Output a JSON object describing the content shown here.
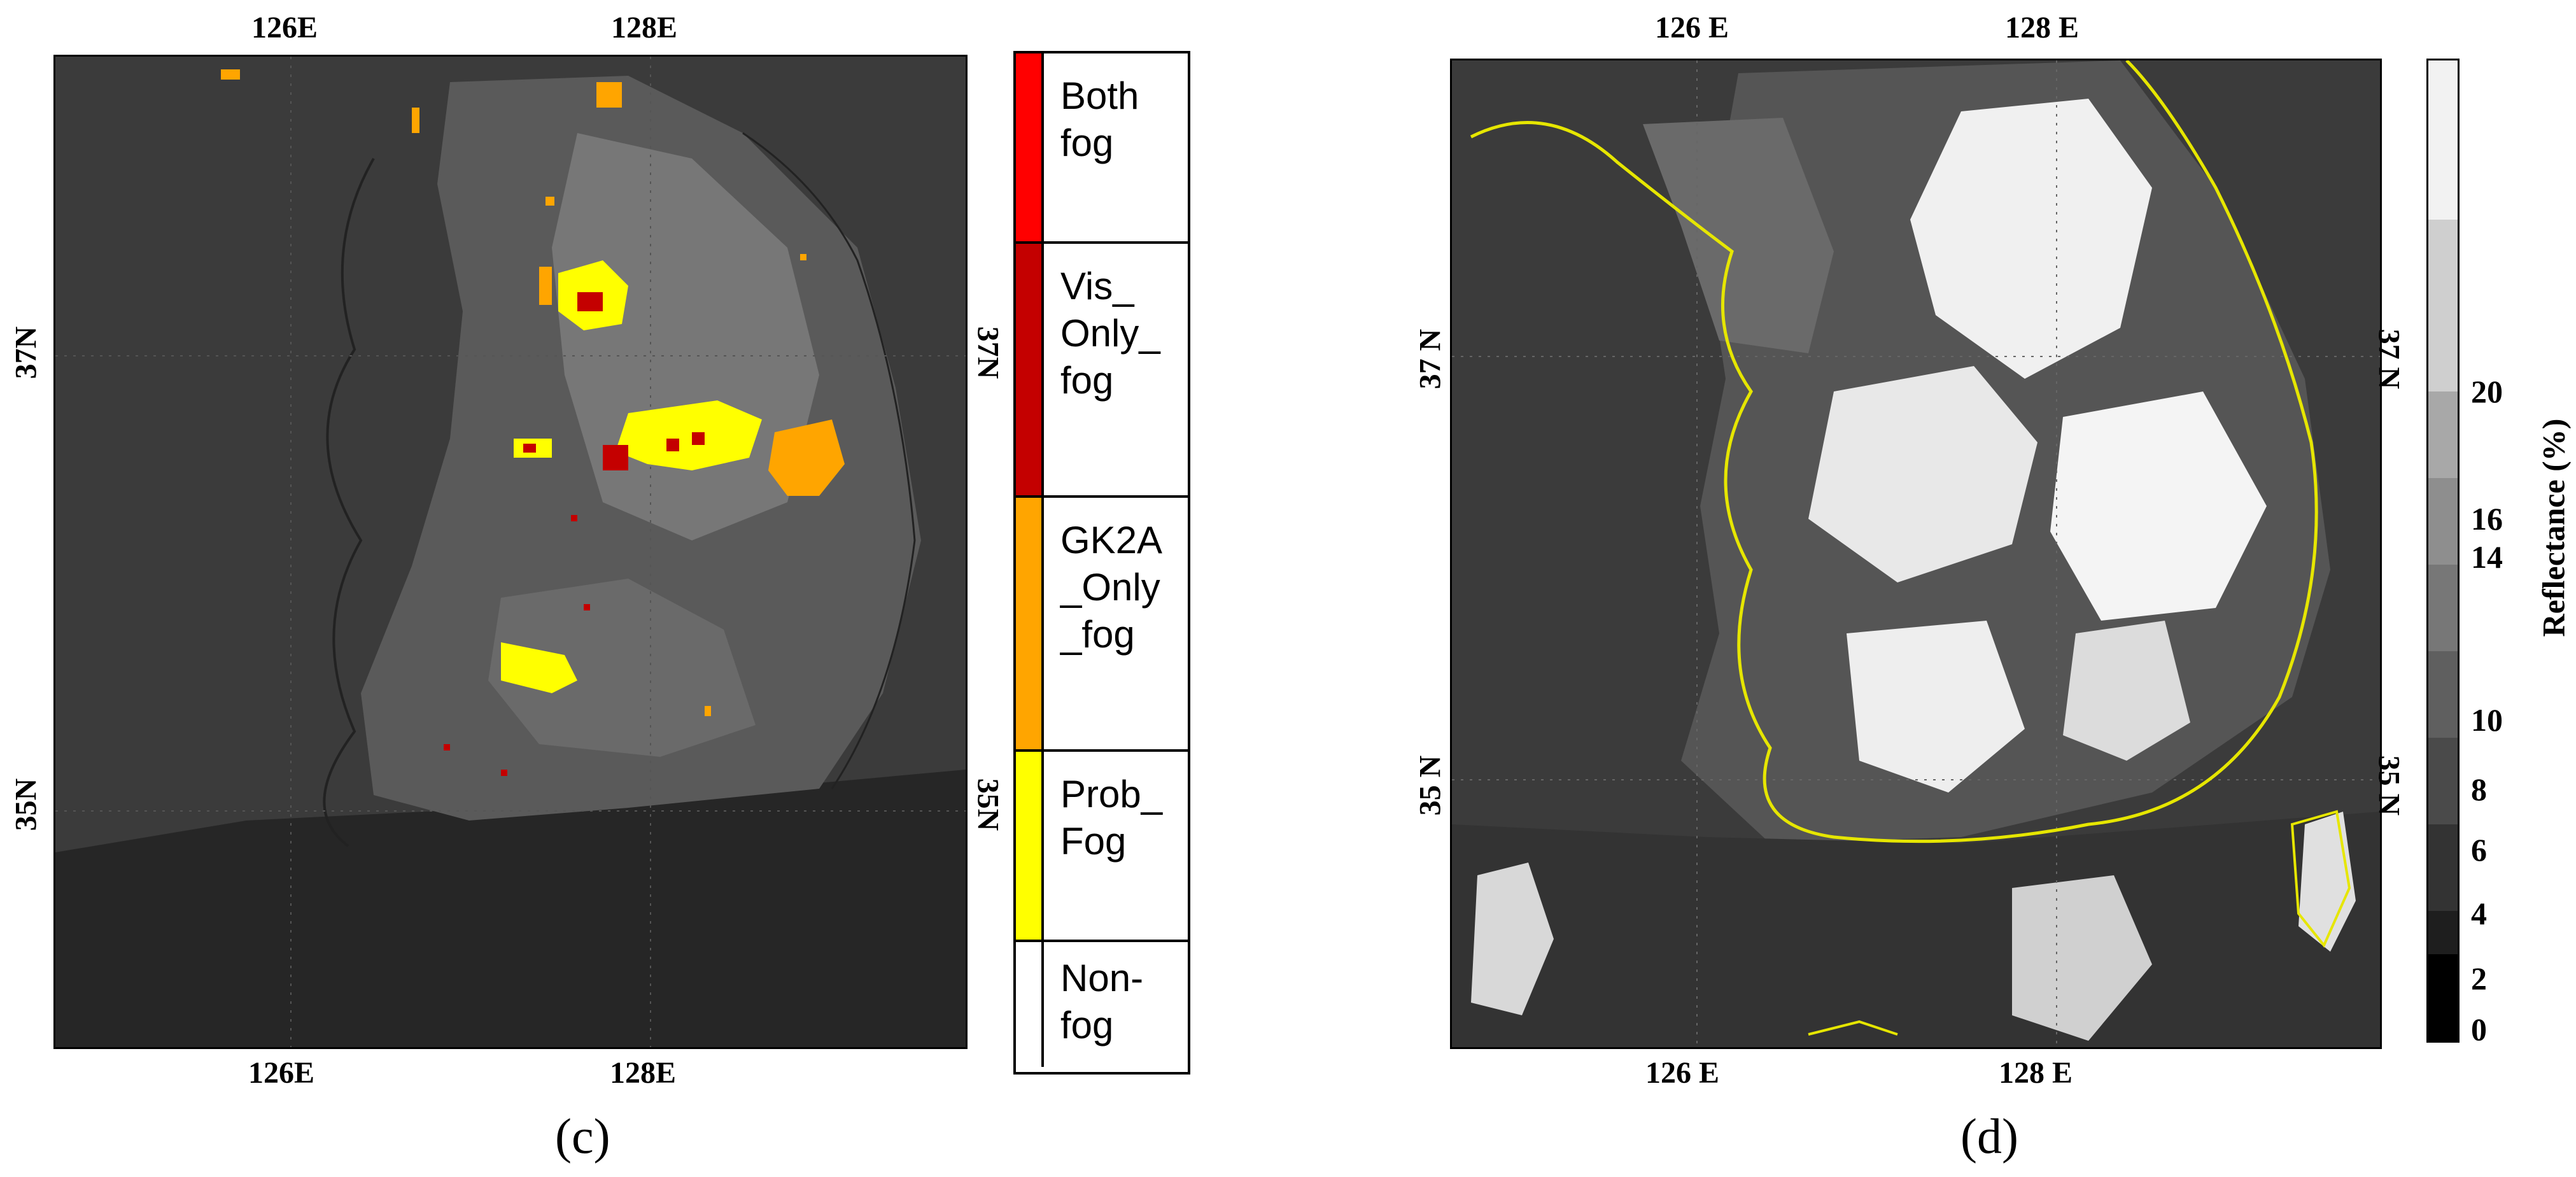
{
  "panel_c": {
    "label": "(c)",
    "top_ticks": [
      "126E",
      "128E"
    ],
    "bottom_ticks": [
      "126E",
      "128E"
    ],
    "left_ticks": [
      "37N",
      "35N"
    ],
    "right_ticks": [
      "37N",
      "35N"
    ],
    "legend": [
      {
        "label": "Both\nfog",
        "color": "#ff0000"
      },
      {
        "label": "Vis_\nOnly_\nfog",
        "color": "#c40000"
      },
      {
        "label": "GK2A\n_Only\n_fog",
        "color": "#ffa500"
      },
      {
        "label": "Prob_\nFog",
        "color": "#ffff00"
      },
      {
        "label": "Non-\nfog",
        "color": "#ffffff"
      }
    ]
  },
  "panel_d": {
    "label": "(d)",
    "top_ticks": [
      "126 E",
      "128 E"
    ],
    "bottom_ticks": [
      "126 E",
      "128 E"
    ],
    "left_ticks": [
      "37 N",
      "35 N"
    ],
    "right_ticks": [
      "37 N",
      "35 N"
    ],
    "colorbar": {
      "title": "Reflectance (%)",
      "ticks": [
        "0",
        "2",
        "4",
        "6",
        "8",
        "10",
        "14",
        "16",
        "20"
      ],
      "levels": [
        0,
        2,
        4,
        6,
        8,
        10,
        14,
        16,
        20
      ],
      "colors": [
        "#000000",
        "#1e1e1e",
        "#333333",
        "#4a4a4a",
        "#5f5f5f",
        "#777777",
        "#8e8e8e",
        "#a8a8a8",
        "#cfcfcf",
        "#f2f2f2"
      ]
    },
    "coastline_color": "#e6e600"
  }
}
